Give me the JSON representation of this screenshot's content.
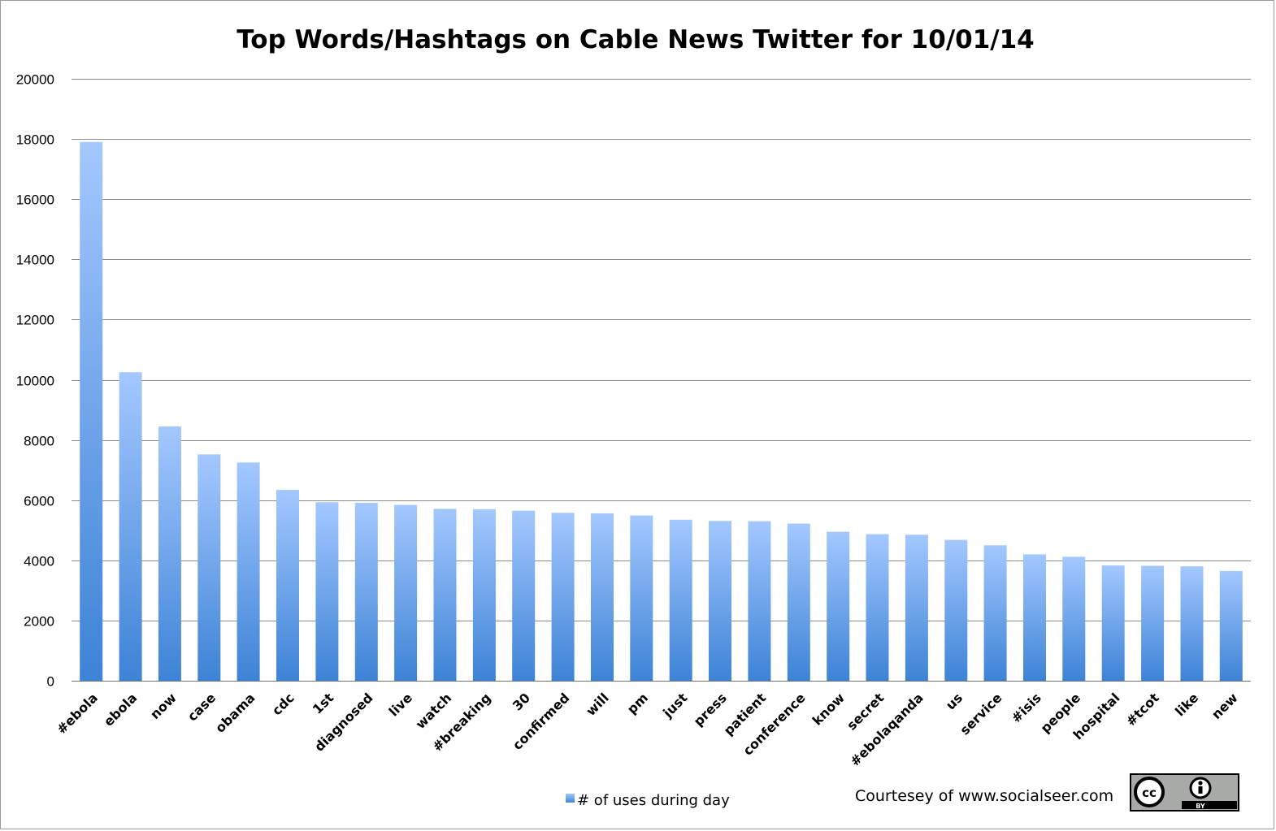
{
  "chart_data": {
    "type": "bar",
    "title": "Top Words/Hashtags on Cable News Twitter for 10/01/14",
    "xlabel": "",
    "ylabel": "",
    "ylim": [
      0,
      20000
    ],
    "yticks": [
      0,
      2000,
      4000,
      6000,
      8000,
      10000,
      12000,
      14000,
      16000,
      18000,
      20000
    ],
    "grid": true,
    "legend_position": "bottom",
    "categories": [
      "#ebola",
      "ebola",
      "now",
      "case",
      "obama",
      "cdc",
      "1st",
      "diagnosed",
      "live",
      "watch",
      "#breaking",
      "30",
      "confirmed",
      "will",
      "pm",
      "just",
      "press",
      "patient",
      "conference",
      "know",
      "secret",
      "#ebolaqanda",
      "us",
      "service",
      "#isis",
      "people",
      "hospital",
      "#tcot",
      "like",
      "new"
    ],
    "series": [
      {
        "name": "# of uses during day",
        "values": [
          17900,
          10250,
          8450,
          7520,
          7250,
          6340,
          5930,
          5910,
          5840,
          5710,
          5700,
          5650,
          5580,
          5560,
          5490,
          5350,
          5310,
          5300,
          5220,
          4950,
          4870,
          4850,
          4680,
          4500,
          4200,
          4120,
          3830,
          3820,
          3800,
          3650
        ],
        "color_top": "#a4c8ff",
        "color_bottom": "#3d83d6"
      }
    ]
  },
  "credit": "Courtesey of www.socialseer.com",
  "license_badge": {
    "left_glyph": "cc",
    "right_label": "BY",
    "icon": "creative-commons-by-icon"
  }
}
